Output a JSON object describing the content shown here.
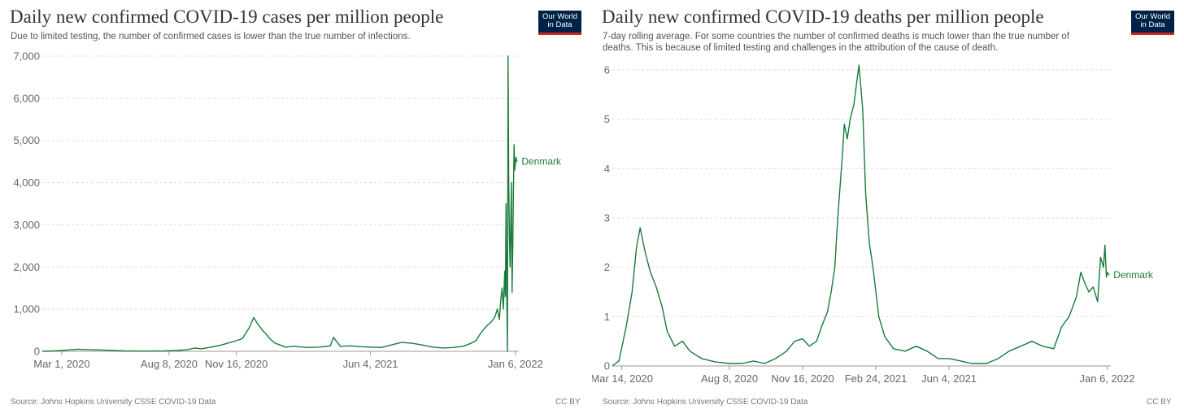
{
  "colors": {
    "series": "#197b3a",
    "grid": "#dddddd",
    "axis": "#999999",
    "logo_bg": "#002147",
    "logo_bar": "#ce261e"
  },
  "logo_line1": "Our World",
  "logo_line2": "in Data",
  "panels": {
    "cases": {
      "title": "Daily new confirmed COVID-19 cases per million people",
      "subtitle": "Due to limited testing, the number of confirmed cases is lower than the true number of infections.",
      "source": "Source: Johns Hopkins University CSSE COVID-19 Data",
      "license": "CC BY"
    },
    "deaths": {
      "title": "Daily new confirmed COVID-19 deaths per million people",
      "subtitle": "7-day rolling average. For some countries the number of confirmed deaths is much lower than the true number of deaths. This is because of limited testing and challenges in the attribution of the cause of death.",
      "source": "Source: Johns Hopkins University CSSE COVID-19 Data",
      "license": "CC BY"
    }
  },
  "chart_data": [
    {
      "type": "line",
      "title": "Daily new confirmed COVID-19 cases per million people",
      "series_name": "Denmark",
      "xlim": [
        "2020-02-01",
        "2022-01-11"
      ],
      "ylim": [
        0,
        7000
      ],
      "yticks": [
        0,
        1000,
        2000,
        3000,
        4000,
        5000,
        6000,
        7000
      ],
      "ytick_labels": [
        "0",
        "1,000",
        "2,000",
        "3,000",
        "4,000",
        "5,000",
        "6,000",
        "7,000"
      ],
      "xticks": [
        "2020-03-01",
        "2020-08-08",
        "2020-11-16",
        "2021-06-04",
        "2022-01-06"
      ],
      "xtick_labels": [
        "Mar 1, 2020",
        "Aug 8, 2020",
        "Nov 16, 2020",
        "Jun 4, 2021",
        "Jan 6, 2022"
      ],
      "grid": true,
      "x": [
        "2020-02-01",
        "2020-02-20",
        "2020-03-10",
        "2020-03-25",
        "2020-04-10",
        "2020-05-01",
        "2020-06-01",
        "2020-07-01",
        "2020-08-01",
        "2020-08-20",
        "2020-09-05",
        "2020-09-15",
        "2020-09-25",
        "2020-10-10",
        "2020-10-25",
        "2020-11-05",
        "2020-11-16",
        "2020-11-25",
        "2020-12-05",
        "2020-12-12",
        "2020-12-18",
        "2020-12-25",
        "2020-12-31",
        "2021-01-05",
        "2021-01-12",
        "2021-01-20",
        "2021-01-28",
        "2021-02-10",
        "2021-03-01",
        "2021-03-20",
        "2021-04-05",
        "2021-04-10",
        "2021-04-20",
        "2021-05-05",
        "2021-05-20",
        "2021-06-04",
        "2021-06-20",
        "2021-07-05",
        "2021-07-20",
        "2021-08-05",
        "2021-08-20",
        "2021-09-05",
        "2021-09-20",
        "2021-10-05",
        "2021-10-20",
        "2021-10-30",
        "2021-11-08",
        "2021-11-16",
        "2021-11-24",
        "2021-12-01",
        "2021-12-06",
        "2021-12-10",
        "2021-12-13",
        "2021-12-15",
        "2021-12-17",
        "2021-12-19",
        "2021-12-21",
        "2021-12-22",
        "2021-12-23",
        "2021-12-24",
        "2021-12-25",
        "2021-12-26",
        "2021-12-27",
        "2021-12-28",
        "2021-12-29",
        "2021-12-30",
        "2021-12-31",
        "2022-01-01",
        "2022-01-02",
        "2022-01-03",
        "2022-01-04",
        "2022-01-05",
        "2022-01-06",
        "2022-01-07",
        "2022-01-08",
        "2022-01-09"
      ],
      "values": [
        0,
        10,
        30,
        50,
        40,
        30,
        10,
        5,
        10,
        20,
        40,
        80,
        60,
        100,
        150,
        200,
        250,
        300,
        550,
        800,
        650,
        500,
        400,
        300,
        200,
        150,
        100,
        120,
        90,
        100,
        130,
        330,
        120,
        130,
        110,
        100,
        90,
        150,
        210,
        190,
        150,
        100,
        80,
        90,
        120,
        180,
        250,
        450,
        600,
        700,
        800,
        1000,
        750,
        1200,
        1500,
        1000,
        1900,
        1300,
        3500,
        1500,
        0,
        7000,
        4000,
        2800,
        2000,
        3000,
        4000,
        1400,
        2500,
        3800,
        4900,
        4300,
        4500,
        4600,
        4500,
        4500
      ],
      "end_label": "Denmark"
    },
    {
      "type": "line",
      "title": "Daily new confirmed COVID-19 deaths per million people",
      "series_name": "Denmark",
      "xlim": [
        "2020-03-01",
        "2022-01-11"
      ],
      "ylim": [
        0,
        6
      ],
      "yticks": [
        0,
        1,
        2,
        3,
        4,
        5,
        6
      ],
      "ytick_labels": [
        "0",
        "1",
        "2",
        "3",
        "4",
        "5",
        "6"
      ],
      "xticks": [
        "2020-03-14",
        "2020-08-08",
        "2020-11-16",
        "2021-02-24",
        "2021-06-04",
        "2022-01-06"
      ],
      "xtick_labels": [
        "Mar 14, 2020",
        "Aug 8, 2020",
        "Nov 16, 2020",
        "Feb 24, 2021",
        "Jun 4, 2021",
        "Jan 6, 2022"
      ],
      "grid": true,
      "x": [
        "2020-03-01",
        "2020-03-10",
        "2020-03-20",
        "2020-03-28",
        "2020-04-03",
        "2020-04-08",
        "2020-04-15",
        "2020-04-22",
        "2020-04-30",
        "2020-05-08",
        "2020-05-15",
        "2020-05-25",
        "2020-06-05",
        "2020-06-15",
        "2020-07-01",
        "2020-07-20",
        "2020-08-08",
        "2020-08-25",
        "2020-09-10",
        "2020-09-25",
        "2020-10-10",
        "2020-10-25",
        "2020-11-05",
        "2020-11-16",
        "2020-11-25",
        "2020-12-05",
        "2020-12-12",
        "2020-12-20",
        "2020-12-25",
        "2020-12-30",
        "2021-01-03",
        "2021-01-06",
        "2021-01-09",
        "2021-01-12",
        "2021-01-16",
        "2021-01-20",
        "2021-01-25",
        "2021-02-01",
        "2021-02-06",
        "2021-02-10",
        "2021-02-15",
        "2021-02-20",
        "2021-02-28",
        "2021-03-08",
        "2021-03-20",
        "2021-04-05",
        "2021-04-20",
        "2021-05-05",
        "2021-05-20",
        "2021-06-04",
        "2021-06-20",
        "2021-07-05",
        "2021-07-25",
        "2021-08-10",
        "2021-08-25",
        "2021-09-10",
        "2021-09-25",
        "2021-10-10",
        "2021-10-25",
        "2021-11-05",
        "2021-11-15",
        "2021-11-25",
        "2021-12-01",
        "2021-12-06",
        "2021-12-12",
        "2021-12-18",
        "2021-12-24",
        "2021-12-28",
        "2022-01-01",
        "2022-01-03",
        "2022-01-05",
        "2022-01-06",
        "2022-01-08",
        "2022-01-09"
      ],
      "values": [
        0,
        0.1,
        0.8,
        1.5,
        2.4,
        2.8,
        2.3,
        1.9,
        1.6,
        1.2,
        0.7,
        0.4,
        0.5,
        0.3,
        0.15,
        0.08,
        0.05,
        0.05,
        0.1,
        0.05,
        0.15,
        0.3,
        0.5,
        0.55,
        0.4,
        0.5,
        0.8,
        1.1,
        1.5,
        2.0,
        3.0,
        3.6,
        4.2,
        4.9,
        4.6,
        5.0,
        5.3,
        6.1,
        5.2,
        3.5,
        2.5,
        2.0,
        1.0,
        0.6,
        0.35,
        0.3,
        0.4,
        0.3,
        0.15,
        0.15,
        0.1,
        0.05,
        0.05,
        0.15,
        0.3,
        0.4,
        0.5,
        0.4,
        0.35,
        0.8,
        1.0,
        1.4,
        1.9,
        1.7,
        1.5,
        1.6,
        1.3,
        2.2,
        2.0,
        2.45,
        1.8,
        1.9,
        1.85,
        1.85
      ],
      "end_label": "Denmark"
    }
  ]
}
